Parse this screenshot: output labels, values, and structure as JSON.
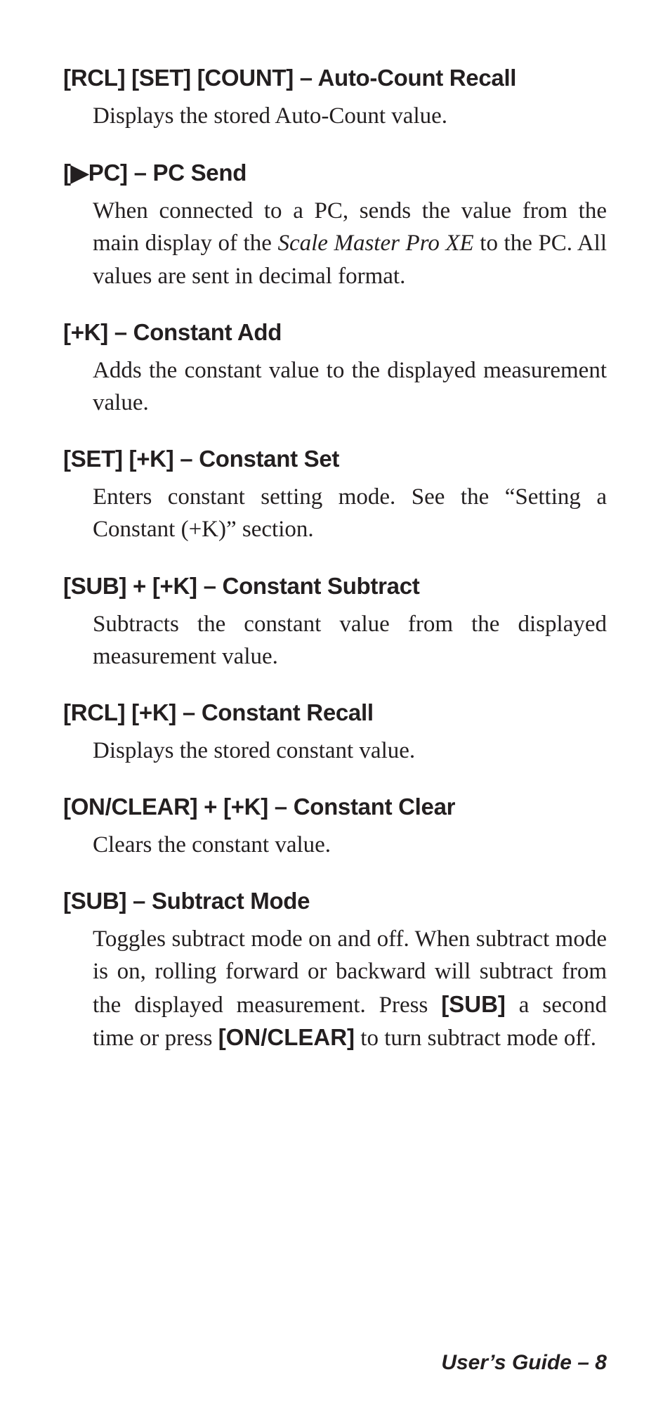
{
  "entries": [
    {
      "title": "[RCL] [SET] [COUNT] – Auto-Count Recall",
      "desc_parts": [
        {
          "type": "text",
          "text": "Displays the stored Auto-Count value."
        }
      ],
      "justify": false
    },
    {
      "title": "[▶PC] – PC Send",
      "desc_parts": [
        {
          "type": "text",
          "text": "When connected to a PC, sends the value from the main display of the "
        },
        {
          "type": "italic",
          "text": "Scale Master Pro XE"
        },
        {
          "type": "text",
          "text": " to the PC. All values are sent in decimal format."
        }
      ],
      "justify": true
    },
    {
      "title": "[+K] – Constant Add",
      "desc_parts": [
        {
          "type": "text",
          "text": "Adds the constant value to the displayed measurement value."
        }
      ],
      "justify": true
    },
    {
      "title": "[SET] [+K] – Constant Set",
      "desc_parts": [
        {
          "type": "text",
          "text": "Enters constant setting mode. See the “Setting a Constant (+K)” section."
        }
      ],
      "justify": true
    },
    {
      "title": "[SUB] + [+K] – Constant Subtract",
      "desc_parts": [
        {
          "type": "text",
          "text": "Subtracts the constant value from the displayed measurement value."
        }
      ],
      "justify": true
    },
    {
      "title": "[RCL] [+K] – Constant Recall",
      "desc_parts": [
        {
          "type": "text",
          "text": "Displays the stored constant value."
        }
      ],
      "justify": false
    },
    {
      "title": "[ON/CLEAR] + [+K] – Constant Clear",
      "desc_parts": [
        {
          "type": "text",
          "text": "Clears the constant value."
        }
      ],
      "justify": false
    },
    {
      "title": "[SUB] – Subtract Mode",
      "desc_parts": [
        {
          "type": "text",
          "text": "Toggles subtract mode on and off. When subtract mode is on, rolling forward or backward will subtract from the displayed measurement. Press "
        },
        {
          "type": "bold",
          "text": "[SUB]"
        },
        {
          "type": "text",
          "text": " a second time or press "
        },
        {
          "type": "bold",
          "text": "[ON/CLEAR]"
        },
        {
          "type": "text",
          "text": " to turn subtract mode off."
        }
      ],
      "justify": true
    }
  ],
  "footer": "User’s Guide – 8"
}
